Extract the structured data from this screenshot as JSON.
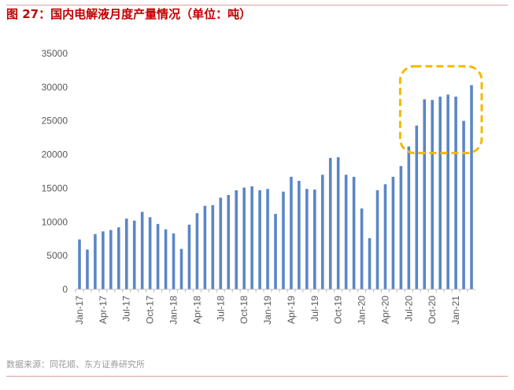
{
  "header": {
    "title": "图 27：国内电解液月度产量情况（单位：吨）"
  },
  "footer": {
    "source": "数据来源：同花顺、东方证券研究所"
  },
  "colors": {
    "bar": "#5b86c5",
    "highlight": "#f5b800",
    "title": "#c00000",
    "axis": "#bfbfbf"
  },
  "chart_data": {
    "type": "bar",
    "title": "图 27：国内电解液月度产量情况（单位：吨）",
    "ylabel": "",
    "xlabel": "",
    "ylim": [
      0,
      35000
    ],
    "yticks": [
      0,
      5000,
      10000,
      15000,
      20000,
      25000,
      30000,
      35000
    ],
    "grid": false,
    "categories": [
      "Jan-17",
      "Feb-17",
      "Mar-17",
      "Apr-17",
      "May-17",
      "Jun-17",
      "Jul-17",
      "Aug-17",
      "Sep-17",
      "Oct-17",
      "Nov-17",
      "Dec-17",
      "Jan-18",
      "Feb-18",
      "Mar-18",
      "Apr-18",
      "May-18",
      "Jun-18",
      "Jul-18",
      "Aug-18",
      "Sep-18",
      "Oct-18",
      "Nov-18",
      "Dec-18",
      "Jan-19",
      "Feb-19",
      "Mar-19",
      "Apr-19",
      "May-19",
      "Jun-19",
      "Jul-19",
      "Aug-19",
      "Sep-19",
      "Oct-19",
      "Nov-19",
      "Dec-19",
      "Jan-20",
      "Feb-20",
      "Mar-20",
      "Apr-20",
      "May-20",
      "Jun-20",
      "Jul-20",
      "Aug-20",
      "Sep-20",
      "Oct-20",
      "Nov-20",
      "Dec-20",
      "Jan-21",
      "Feb-21",
      "Mar-21"
    ],
    "tick_labels": [
      "Jan-17",
      "Apr-17",
      "Jul-17",
      "Oct-17",
      "Jan-18",
      "Apr-18",
      "Jul-18",
      "Oct-18",
      "Jan-19",
      "Apr-19",
      "Jul-19",
      "Oct-19",
      "Jan-20",
      "Apr-20",
      "Jul-20",
      "Oct-20",
      "Jan-21"
    ],
    "values": [
      7400,
      5900,
      8200,
      8600,
      8800,
      9200,
      10500,
      10200,
      11500,
      10700,
      9700,
      8900,
      8300,
      6000,
      9600,
      11300,
      12400,
      12500,
      13600,
      14000,
      14700,
      15100,
      15300,
      14700,
      14900,
      11200,
      14500,
      16700,
      16100,
      14900,
      14800,
      17000,
      19500,
      19600,
      17000,
      16700,
      12000,
      7600,
      14700,
      15600,
      16700,
      18300,
      21200,
      24300,
      28200,
      28100,
      28600,
      28900,
      28600,
      25000,
      30300
    ],
    "highlight": {
      "from": "Jul-20",
      "to": "Mar-21"
    }
  }
}
